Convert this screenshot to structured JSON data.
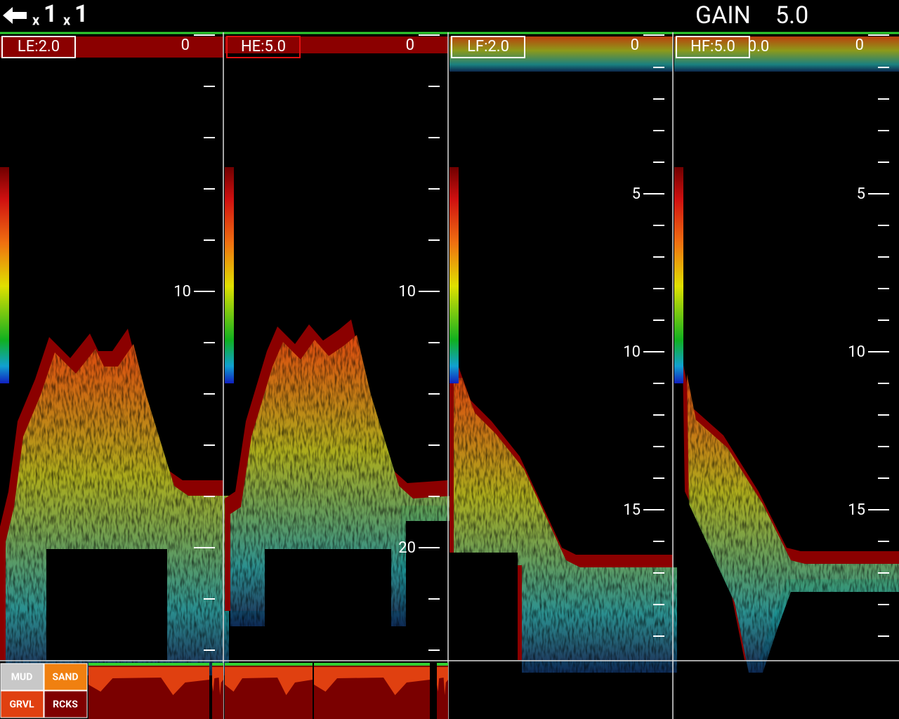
{
  "header": {
    "zoom": [
      {
        "prefix": "x",
        "value": "1"
      },
      {
        "prefix": "x",
        "value": "1"
      }
    ],
    "gain_label": "GAIN",
    "gain_value": "5.0"
  },
  "panels": [
    {
      "label": "LE:2.0",
      "top": 0,
      "depth_labels": [
        10
      ]
    },
    {
      "label": "HE:5.0",
      "top": 0,
      "depth_labels": [
        10,
        20
      ]
    },
    {
      "label": "LF:2.0",
      "top": 0,
      "depth_labels": [
        5,
        10,
        15
      ]
    },
    {
      "label": "HF:5.0",
      "offset": "0.0",
      "top": 0,
      "depth_labels": [
        5,
        10,
        15
      ]
    }
  ],
  "bottom_legend": [
    "MUD",
    "SAND",
    "GRVL",
    "RCKS"
  ]
}
